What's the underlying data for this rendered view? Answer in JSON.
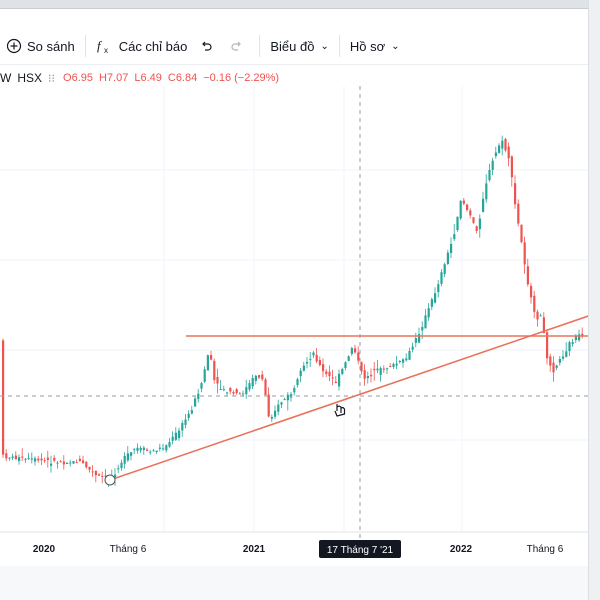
{
  "toolbar": {
    "compare_label": "So sánh",
    "indicators_label": "Các chỉ báo",
    "chart_type_label": "Biểu đồ",
    "profile_label": "Hồ sơ"
  },
  "legend": {
    "symbol_partial": "W",
    "exchange": "HSX",
    "open": "O6.95",
    "high": "H7.07",
    "low": "L6.49",
    "close": "C6.84",
    "change": "−0.16 (−2.29%)"
  },
  "time_axis": {
    "labels": [
      "2020",
      "Tháng 6",
      "2021",
      "2022",
      "Tháng 6"
    ],
    "crosshair_label": "17 Tháng 7 '21"
  },
  "colors": {
    "up": "#26a69a",
    "down": "#ef5350",
    "trendline": "#e8735c",
    "text": "#131722",
    "muted": "#787b86"
  },
  "chart_data": {
    "type": "candlestick",
    "drawings": [
      "horizontal resistance line",
      "ascending trend line"
    ]
  }
}
